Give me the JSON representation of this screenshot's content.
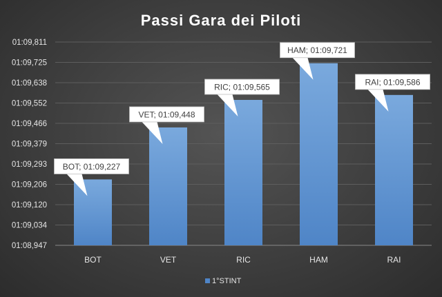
{
  "chart_data": {
    "type": "bar",
    "title": "Passi Gara dei Piloti",
    "categories": [
      "BOT",
      "VET",
      "RIC",
      "HAM",
      "RAI"
    ],
    "series": [
      {
        "name": "1°STINT",
        "values": [
          69.227,
          69.448,
          69.565,
          69.721,
          69.586
        ],
        "labels": [
          "BOT; 01:09,227",
          "VET; 01:09,448",
          "RIC; 01:09,565",
          "HAM; 01:09,721",
          "RAI; 01:09,586"
        ]
      }
    ],
    "yticks": [
      "01:08,947",
      "01:09,034",
      "01:09,120",
      "01:09,206",
      "01:09,293",
      "01:09,379",
      "01:09,466",
      "01:09,552",
      "01:09,638",
      "01:09,725",
      "01:09,811"
    ],
    "ylim": [
      68.947,
      69.811
    ],
    "grid": true,
    "legend": "bottom",
    "colors": {
      "bar_top": "#7aa9dd",
      "bar_bottom": "#4f85c7",
      "grid": "#5e5e5e",
      "label_bg": "#ffffff"
    }
  }
}
